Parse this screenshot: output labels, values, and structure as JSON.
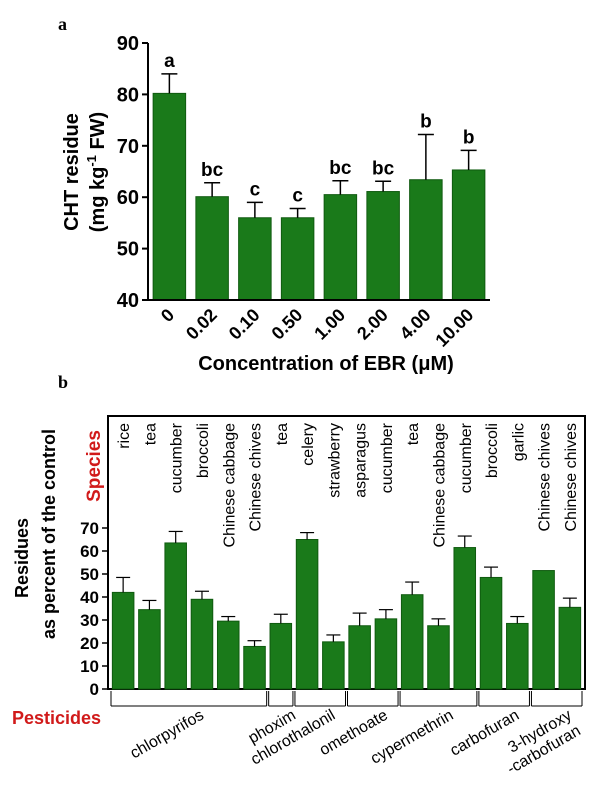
{
  "panel_a_label": "a",
  "panel_b_label": "b",
  "colors": {
    "bar": "#1a7a1a",
    "bar_stroke": "#0f5a0f",
    "red": "#d11a1a",
    "axis": "#000000"
  },
  "chart_data": [
    {
      "type": "bar",
      "categories": [
        "0",
        "0.02",
        "0.10",
        "0.50",
        "1.00",
        "2.00",
        "4.00",
        "10.00"
      ],
      "values": [
        80.2,
        60.1,
        56.0,
        56.0,
        60.5,
        61.1,
        63.4,
        65.3
      ],
      "errors": [
        3.8,
        2.7,
        3.0,
        1.8,
        2.7,
        2.0,
        8.8,
        3.8
      ],
      "significance": [
        "a",
        "bc",
        "c",
        "c",
        "bc",
        "bc",
        "b",
        "b"
      ],
      "xlabel": "Concentration of EBR (μM)",
      "ylabel_line1": "CHT residue",
      "ylabel_line2": "(mg kg",
      "ylabel_sup": "-1",
      "ylabel_line2_end": " FW)",
      "ylim": [
        40,
        90
      ],
      "yticks": [
        "40",
        "50",
        "60",
        "70",
        "80",
        "90"
      ]
    },
    {
      "type": "bar",
      "species_label": "Species",
      "pesticides_label": "Pesticides",
      "ylabel_line1": "Residues",
      "ylabel_line2": "as percent of the control",
      "ylim": [
        0,
        70
      ],
      "yticks": [
        "0",
        "10",
        "20",
        "30",
        "40",
        "50",
        "60",
        "70"
      ],
      "species": [
        "rice",
        "tea",
        "cucumber",
        "broccoli",
        "Chinese cabbage",
        "Chinese chives",
        "tea",
        "celery",
        "strawberry",
        "asparagus",
        "cucumber",
        "tea",
        "Chinese cabbage",
        "cucumber",
        "broccoli",
        "garlic",
        "Chinese chives",
        "Chinese chives"
      ],
      "values": [
        42,
        34.5,
        63.5,
        39,
        29.5,
        18.5,
        28.5,
        65,
        20.5,
        27.5,
        30.5,
        41,
        27.5,
        61.5,
        48.5,
        28.5,
        51.5,
        35.5
      ],
      "errors": [
        6.5,
        4,
        5,
        3.5,
        2,
        2.5,
        4,
        3,
        3,
        5.5,
        4,
        5.5,
        3,
        5,
        4.5,
        3,
        0,
        4
      ],
      "pesticide_groups": [
        {
          "name": "chlorpyrifos",
          "start": 0,
          "end": 5
        },
        {
          "name": "phoxim",
          "start": 6,
          "end": 6
        },
        {
          "name": "chlorothalonil",
          "start": 7,
          "end": 8
        },
        {
          "name": "omethoate",
          "start": 9,
          "end": 10
        },
        {
          "name": "cypermethrin",
          "start": 11,
          "end": 13
        },
        {
          "name": "carbofuran",
          "start": 14,
          "end": 15
        },
        {
          "name": "3-hydroxy",
          "name2": "-carbofuran",
          "start": 16,
          "end": 17
        }
      ]
    }
  ]
}
